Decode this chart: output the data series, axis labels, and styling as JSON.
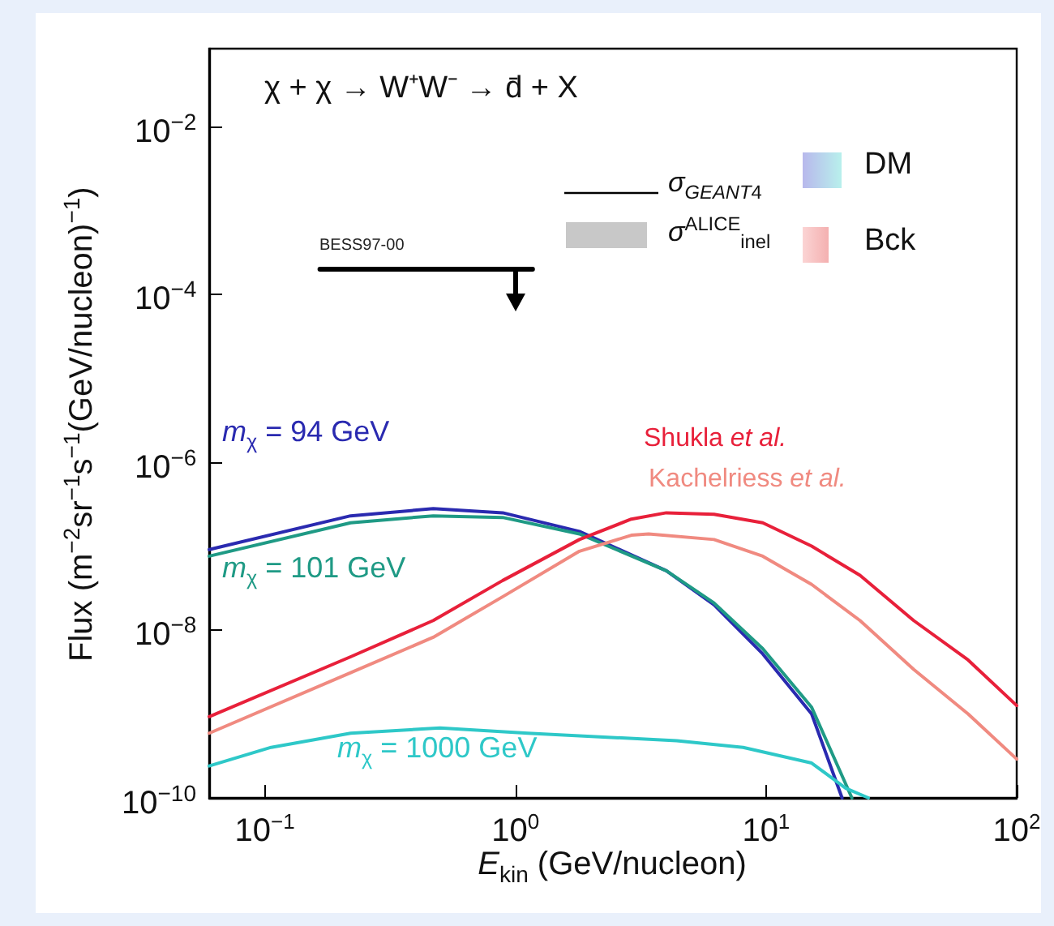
{
  "chart_data": {
    "type": "line",
    "title": "χ + χ → W⁺W⁻ → d̄ + X",
    "xlabel": "E$_{kin}$ (GeV/nucleon)",
    "ylabel": "Flux (m$^{−2}$sr$^{−1}$s$^{−1}$(GeV/nucleon)$^{−1}$)",
    "log": "xy",
    "xlim": [
      0.06,
      100
    ],
    "xticks": [
      {
        "value": 0.1,
        "label": "10$^{−1}$"
      },
      {
        "value": 1,
        "label": "10$^{0}$"
      },
      {
        "value": 10,
        "label": "10$^{1}$"
      },
      {
        "value": 100,
        "label": "10$^{2}$"
      }
    ],
    "ylim": [
      1e-10,
      0.085
    ],
    "yticks": [
      {
        "value": 1e-10,
        "label": "10$^{−10}$"
      },
      {
        "value": 1e-08,
        "label": "10$^{−8}$"
      },
      {
        "value": 1e-06,
        "label": "10$^{−6}$"
      },
      {
        "value": 0.0001,
        "label": "10$^{−4}$"
      },
      {
        "value": 0.01,
        "label": "10$^{−2}$"
      }
    ],
    "grid": false,
    "marker": "none",
    "line_style": "solid",
    "series": [
      {
        "name": "m$_{χ}$ = 94 GeV",
        "color": "#2a2ab0",
        "x": [
          0.06,
          0.22,
          0.47,
          0.89,
          1.8,
          4.0,
          6.2,
          9.7,
          15.2,
          20.1
        ],
        "values": [
          9.1e-08,
          2.3e-07,
          2.8e-07,
          2.5e-07,
          1.5e-07,
          5.1e-08,
          2e-08,
          5.2e-09,
          1e-09,
          1e-10
        ]
      },
      {
        "name": "m$_{χ}$ = 101 GeV",
        "color": "#1f9a85",
        "x": [
          0.06,
          0.22,
          0.47,
          0.89,
          1.8,
          4.0,
          6.2,
          9.7,
          15.2,
          22.0
        ],
        "values": [
          7.6e-08,
          1.9e-07,
          2.3e-07,
          2.2e-07,
          1.4e-07,
          5.1e-08,
          2.1e-08,
          6e-09,
          1.2e-09,
          1e-10
        ]
      },
      {
        "name": "m$_{χ}$ = 1000 GeV",
        "color": "#2ec8c8",
        "x": [
          0.06,
          0.106,
          0.22,
          0.5,
          1.12,
          4.4,
          8.1,
          15.2,
          20.8,
          25.6
        ],
        "values": [
          2.4e-10,
          4e-10,
          5.9e-10,
          6.8e-10,
          5.9e-10,
          4.8e-10,
          4e-10,
          2.6e-10,
          1.3e-10,
          1e-10
        ]
      },
      {
        "name": "Shukla et al.",
        "color": "#e8203a",
        "x": [
          0.06,
          0.22,
          0.47,
          0.89,
          1.8,
          2.9,
          4.0,
          6.2,
          9.7,
          15.2,
          23.7,
          38.8,
          64,
          100
        ],
        "values": [
          9.3e-10,
          4.8e-09,
          1.3e-08,
          3.9e-08,
          1.2e-07,
          2.1e-07,
          2.5e-07,
          2.4e-07,
          1.9e-07,
          1e-07,
          4.5e-08,
          1.3e-08,
          4.4e-09,
          1.26e-09
        ]
      },
      {
        "name": "Kachelriess et al.",
        "color": "#f08a80",
        "x": [
          0.06,
          0.22,
          0.47,
          0.89,
          1.8,
          2.9,
          3.4,
          6.2,
          9.7,
          15.2,
          23.7,
          38.8,
          64,
          100
        ],
        "values": [
          5.9e-10,
          3.1e-09,
          8.2e-09,
          2.5e-08,
          8.7e-08,
          1.35e-07,
          1.4e-07,
          1.2e-07,
          7.6e-08,
          3.5e-08,
          1.3e-08,
          3.4e-09,
          1e-09,
          2.9e-10
        ]
      },
      {
        "name": "BESS97-00",
        "color": "#000000",
        "x": [
          0.166,
          1.17
        ],
        "values": [
          0.0002,
          0.0002
        ]
      }
    ],
    "annotations": [
      "σ$_{GEANT4}$",
      "σ$^{ALICE}$$_{inel}$",
      "DM",
      "Bck"
    ]
  }
}
